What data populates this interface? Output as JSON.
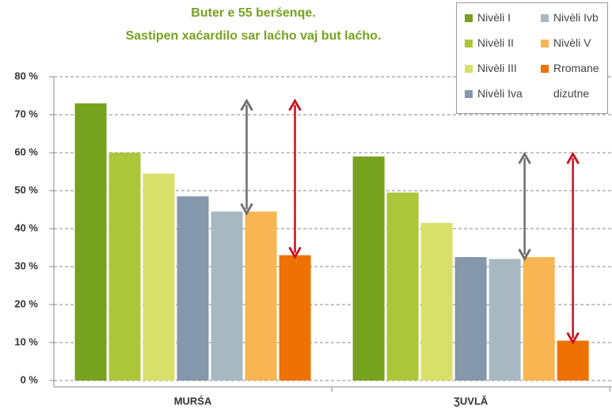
{
  "chart_data": {
    "type": "bar",
    "title": "Buter e 55 berśenqe.",
    "subtitle": "Sastipen xaćardilo sar laćho vaj but laćho.",
    "categories": [
      "MURŚA",
      "ƷUVLĂ"
    ],
    "series": [
      {
        "name": "Nivèli I",
        "color": "#76a21e",
        "values": [
          73,
          59
        ]
      },
      {
        "name": "Nivèli II",
        "color": "#acc63a",
        "values": [
          60,
          49.5
        ]
      },
      {
        "name": "Nivèli III",
        "color": "#d8e06a",
        "values": [
          54.5,
          41.5
        ]
      },
      {
        "name": "Nivèli Iva",
        "color": "#8497ab",
        "values": [
          48.5,
          32.5
        ]
      },
      {
        "name": "Nivèli Ivb",
        "color": "#a7b8c1",
        "values": [
          44.5,
          32
        ]
      },
      {
        "name": "Nivèli V",
        "color": "#f8b552",
        "values": [
          44.5,
          32.5
        ]
      },
      {
        "name": "Rromane dizutne",
        "color": "#ee7203",
        "values": [
          33,
          10.5
        ]
      }
    ],
    "ylim": [
      0,
      80
    ],
    "yticks": [
      {
        "value": 0,
        "label": "0 %"
      },
      {
        "value": 10,
        "label": "10 %"
      },
      {
        "value": 20,
        "label": "20 %"
      },
      {
        "value": 30,
        "label": "30 %"
      },
      {
        "value": 40,
        "label": "40 %"
      },
      {
        "value": 50,
        "label": "50 %"
      },
      {
        "value": 60,
        "label": "60 %"
      },
      {
        "value": 70,
        "label": "70 %"
      },
      {
        "value": 80,
        "label": "80 %"
      }
    ],
    "grid": true,
    "legend": "top-right"
  }
}
